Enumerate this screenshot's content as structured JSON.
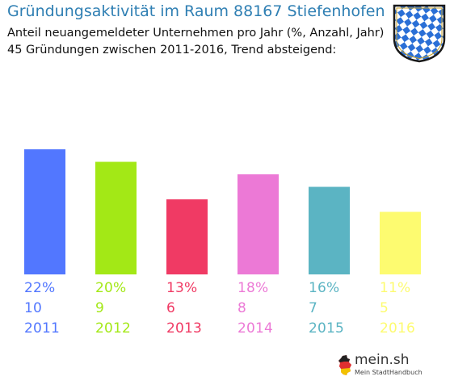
{
  "header": {
    "title": "Gründungsaktivität im Raum 88167 Stiefenhofen",
    "subtitle_line1": "Anteil neuangemeldeter Unternehmen pro Jahr (%, Anzahl, Jahr)",
    "subtitle_line2": "45 Gründungen zwischen 2011-2016, Trend absteigend:"
  },
  "crest": {
    "icon": "bavarian-crest-icon",
    "colors": {
      "blue": "#2a6fd6",
      "white": "#ffffff",
      "border": "#1a1a1a"
    }
  },
  "brand": {
    "name": "mein.sh",
    "tagline": "Mein StadtHandbuch",
    "icon": "germany-map-icon"
  },
  "chart_data": {
    "type": "bar",
    "title": "",
    "categories": [
      "2011",
      "2012",
      "2013",
      "2014",
      "2015",
      "2016"
    ],
    "values": [
      10,
      9,
      6,
      8,
      7,
      5
    ],
    "percent_labels": [
      "22%",
      "20%",
      "13%",
      "18%",
      "16%",
      "11%"
    ],
    "colors": [
      "#5277ff",
      "#a3e816",
      "#f03a64",
      "#ec79d6",
      "#5bb4c3",
      "#fdfb70"
    ],
    "ylim": [
      0,
      10
    ],
    "grid": false,
    "legend": false
  }
}
